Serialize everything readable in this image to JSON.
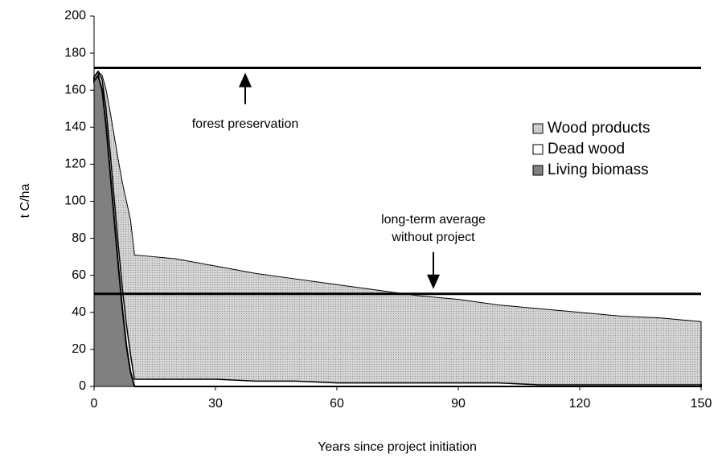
{
  "chart_data": {
    "type": "stacked_area",
    "x_label": "Years since project initiation",
    "y_label": "t C/ha",
    "x": [
      0,
      1,
      2,
      3,
      4,
      5,
      6,
      7,
      8,
      9,
      10,
      20,
      30,
      40,
      50,
      60,
      70,
      80,
      90,
      100,
      110,
      120,
      130,
      140,
      150
    ],
    "series": [
      {
        "name": "Living biomass",
        "color": "#808080",
        "values": [
          165,
          168,
          160,
          140,
          115,
          90,
          65,
          42,
          22,
          8,
          0,
          0,
          0,
          0,
          0,
          0,
          0,
          0,
          0,
          0,
          0,
          0,
          0,
          0,
          0
        ]
      },
      {
        "name": "Dead wood",
        "color": "#ffffff",
        "values": [
          2,
          2,
          6,
          10,
          12,
          12,
          12,
          12,
          12,
          10,
          4,
          4,
          4,
          3,
          3,
          2,
          2,
          2,
          2,
          2,
          1,
          1,
          1,
          1,
          1
        ]
      },
      {
        "name": "Wood products",
        "color": "#c8c8c8",
        "values": [
          0,
          0,
          2,
          10,
          21,
          33,
          45,
          56,
          66,
          72,
          67,
          65,
          61,
          58,
          55,
          53,
          50,
          47,
          45,
          42,
          41,
          39,
          37,
          36,
          34
        ]
      }
    ],
    "reference_lines": [
      {
        "value": 172,
        "label": [
          "forest preservation"
        ]
      },
      {
        "value": 50,
        "label": [
          "long-term average",
          "without project"
        ]
      }
    ],
    "xlim": [
      0,
      150
    ],
    "xticks": [
      0,
      30,
      60,
      90,
      120,
      150
    ],
    "ylim": [
      0,
      200
    ],
    "yticks": [
      0,
      20,
      40,
      60,
      80,
      100,
      120,
      140,
      160,
      180,
      200
    ],
    "grid": false,
    "legend": "right"
  }
}
